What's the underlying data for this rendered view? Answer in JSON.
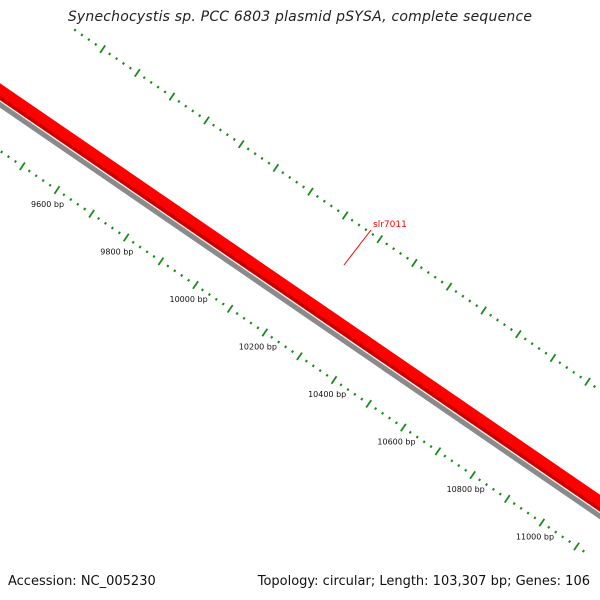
{
  "title": "Synechocystis sp. PCC 6803 plasmid pSYSA, complete sequence",
  "footer": {
    "accession": "Accession: NC_005230",
    "summary": "Topology: circular; Length: 103,307 bp; Genes: 106"
  },
  "map": {
    "topology": "circular",
    "length_bp": 103307,
    "gene_count": 106,
    "scale_ticks": [
      {
        "bp": 9600,
        "label": "9600 bp"
      },
      {
        "bp": 9800,
        "label": "9800 bp"
      },
      {
        "bp": 10000,
        "label": "10000 bp"
      },
      {
        "bp": 10200,
        "label": "10200 bp"
      },
      {
        "bp": 10400,
        "label": "10400 bp"
      },
      {
        "bp": 10600,
        "label": "10600 bp"
      },
      {
        "bp": 10800,
        "label": "10800 bp"
      },
      {
        "bp": 11000,
        "label": "11000 bp"
      }
    ],
    "features": [
      {
        "name": "slr7011",
        "color": "#ff0000"
      }
    ],
    "colors": {
      "feature": "#ff0000",
      "feature_dark": "#c40000",
      "backbone": "#8a8a8a",
      "ticks": "#1a8a1a"
    }
  }
}
